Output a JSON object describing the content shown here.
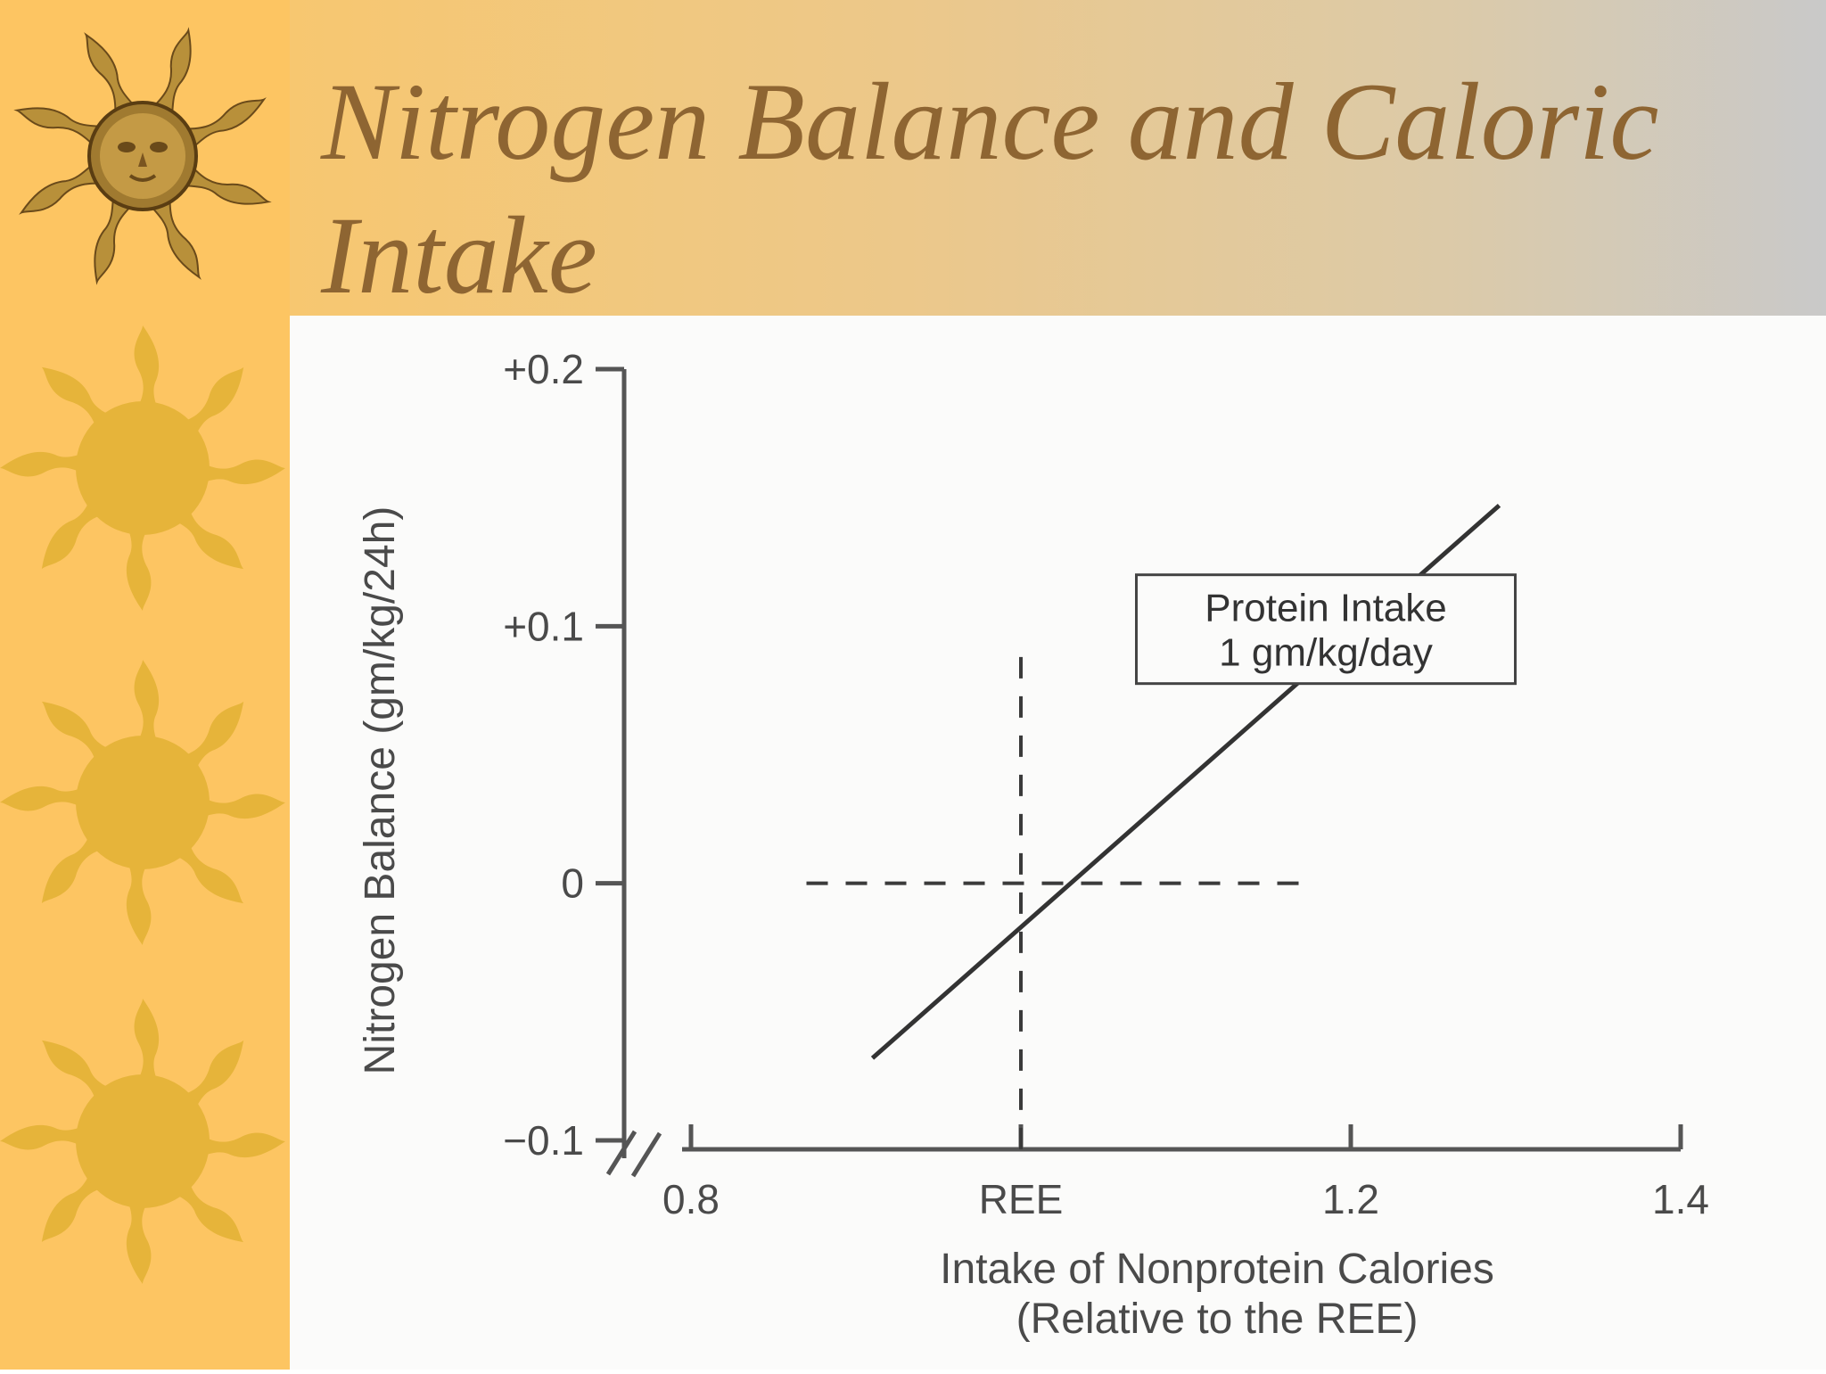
{
  "slide": {
    "title": "Nitrogen Balance and Caloric Intake"
  },
  "theme": {
    "sidebar_color": "#fdc562",
    "sun_color": "#e6b43a",
    "title_color": "#8e6532"
  },
  "chart_data": {
    "type": "line",
    "title": "",
    "xlabel_line1": "Intake of Nonprotein Calories",
    "xlabel_line2": "(Relative to the REE)",
    "ylabel": "Nitrogen Balance (gm/kg/24h)",
    "x_ticks": [
      {
        "value": 0.8,
        "label": "0.8"
      },
      {
        "value": 1.0,
        "label": "REE"
      },
      {
        "value": 1.2,
        "label": "1.2"
      },
      {
        "value": 1.4,
        "label": "1.4"
      }
    ],
    "y_ticks": [
      {
        "value": 0.2,
        "label": "+0.2"
      },
      {
        "value": 0.1,
        "label": "+0.1"
      },
      {
        "value": 0.0,
        "label": "0"
      },
      {
        "value": -0.1,
        "label": "−0.1"
      }
    ],
    "xlim": [
      0.8,
      1.4
    ],
    "ylim": [
      -0.1,
      0.2
    ],
    "axis_breaks": true,
    "grid": false,
    "series": [
      {
        "name": "Protein Intake 1 gm/kg/day",
        "points": [
          [
            0.91,
            -0.068
          ],
          [
            1.29,
            0.147
          ]
        ]
      }
    ],
    "reference_lines": {
      "vertical_x": 1.0,
      "horizontal_y": 0.0
    },
    "annotation": {
      "line1": "Protein Intake",
      "line2": "1 gm/kg/day"
    }
  }
}
